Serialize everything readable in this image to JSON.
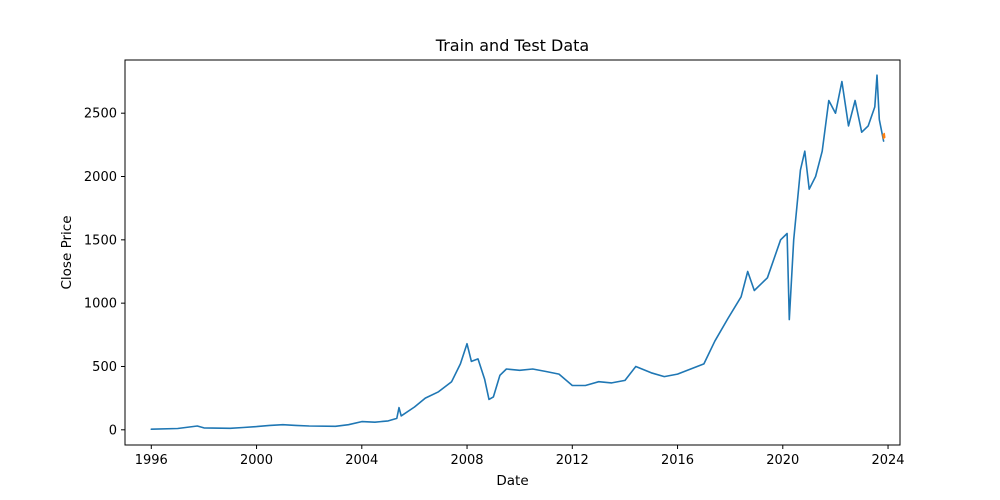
{
  "chart_data": {
    "type": "line",
    "title": "Train and Test Data",
    "xlabel": "Date",
    "ylabel": "Close Price",
    "xlim": [
      "1995-01-01",
      "2024-06-15"
    ],
    "ylim": [
      -120,
      2920
    ],
    "grid": false,
    "x_ticks": [
      {
        "date": "1996-01-01",
        "label": "1996"
      },
      {
        "date": "2000-01-01",
        "label": "2000"
      },
      {
        "date": "2004-01-01",
        "label": "2004"
      },
      {
        "date": "2008-01-01",
        "label": "2008"
      },
      {
        "date": "2012-01-01",
        "label": "2012"
      },
      {
        "date": "2016-01-01",
        "label": "2016"
      },
      {
        "date": "2020-01-01",
        "label": "2020"
      },
      {
        "date": "2024-01-01",
        "label": "2024"
      }
    ],
    "y_ticks": [
      {
        "value": 0,
        "label": "0"
      },
      {
        "value": 500,
        "label": "500"
      },
      {
        "value": 1000,
        "label": "1000"
      },
      {
        "value": 1500,
        "label": "1500"
      },
      {
        "value": 2000,
        "label": "2000"
      },
      {
        "value": 2500,
        "label": "2500"
      }
    ],
    "series": [
      {
        "color": "#1f77b4",
        "points": [
          [
            "1996-01-01",
            5
          ],
          [
            "1997-01-01",
            10
          ],
          [
            "1997-10-01",
            30
          ],
          [
            "1998-01-01",
            15
          ],
          [
            "1999-01-01",
            12
          ],
          [
            "1999-07-01",
            18
          ],
          [
            "2000-01-01",
            25
          ],
          [
            "2000-07-01",
            35
          ],
          [
            "2001-01-01",
            40
          ],
          [
            "2001-07-01",
            35
          ],
          [
            "2002-01-01",
            30
          ],
          [
            "2003-01-01",
            28
          ],
          [
            "2003-07-01",
            40
          ],
          [
            "2004-01-01",
            65
          ],
          [
            "2004-07-01",
            60
          ],
          [
            "2005-01-01",
            70
          ],
          [
            "2005-05-01",
            90
          ],
          [
            "2005-06-01",
            175
          ],
          [
            "2005-07-01",
            110
          ],
          [
            "2006-01-01",
            180
          ],
          [
            "2006-06-01",
            250
          ],
          [
            "2006-12-01",
            300
          ],
          [
            "2007-06-01",
            380
          ],
          [
            "2007-10-01",
            520
          ],
          [
            "2008-01-01",
            680
          ],
          [
            "2008-03-01",
            540
          ],
          [
            "2008-06-01",
            560
          ],
          [
            "2008-09-01",
            400
          ],
          [
            "2008-11-01",
            240
          ],
          [
            "2009-01-01",
            260
          ],
          [
            "2009-04-01",
            430
          ],
          [
            "2009-07-01",
            480
          ],
          [
            "2010-01-01",
            470
          ],
          [
            "2010-07-01",
            480
          ],
          [
            "2011-01-01",
            460
          ],
          [
            "2011-07-01",
            440
          ],
          [
            "2012-01-01",
            350
          ],
          [
            "2012-07-01",
            350
          ],
          [
            "2013-01-01",
            380
          ],
          [
            "2013-07-01",
            370
          ],
          [
            "2014-01-01",
            390
          ],
          [
            "2014-06-01",
            500
          ],
          [
            "2015-01-01",
            450
          ],
          [
            "2015-07-01",
            420
          ],
          [
            "2016-01-01",
            440
          ],
          [
            "2016-07-01",
            480
          ],
          [
            "2017-01-01",
            520
          ],
          [
            "2017-06-01",
            700
          ],
          [
            "2017-12-01",
            880
          ],
          [
            "2018-06-01",
            1050
          ],
          [
            "2018-09-01",
            1250
          ],
          [
            "2018-12-01",
            1100
          ],
          [
            "2019-06-01",
            1200
          ],
          [
            "2019-12-01",
            1500
          ],
          [
            "2020-03-01",
            1550
          ],
          [
            "2020-04-01",
            870
          ],
          [
            "2020-06-01",
            1500
          ],
          [
            "2020-09-01",
            2050
          ],
          [
            "2020-11-01",
            2200
          ],
          [
            "2021-01-01",
            1900
          ],
          [
            "2021-04-01",
            2000
          ],
          [
            "2021-07-01",
            2200
          ],
          [
            "2021-10-01",
            2600
          ],
          [
            "2022-01-01",
            2500
          ],
          [
            "2022-04-01",
            2750
          ],
          [
            "2022-07-01",
            2400
          ],
          [
            "2022-10-01",
            2600
          ],
          [
            "2023-01-01",
            2350
          ],
          [
            "2023-04-01",
            2400
          ],
          [
            "2023-07-01",
            2550
          ],
          [
            "2023-08-01",
            2800
          ],
          [
            "2023-09-01",
            2450
          ],
          [
            "2023-11-01",
            2280
          ]
        ]
      },
      {
        "color": "#ff7f0e",
        "points": [
          [
            "2023-10-25",
            2330
          ],
          [
            "2023-11-01",
            2300
          ],
          [
            "2023-11-08",
            2340
          ],
          [
            "2023-11-15",
            2310
          ]
        ]
      }
    ]
  }
}
